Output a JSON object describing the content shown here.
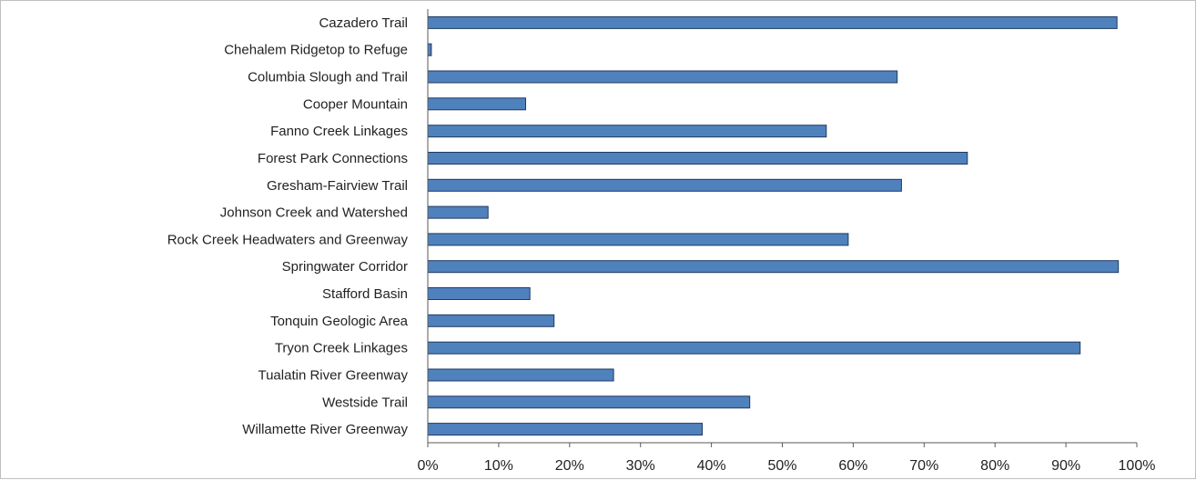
{
  "chart_data": {
    "type": "bar",
    "orientation": "horizontal",
    "title": "",
    "xlabel": "",
    "ylabel": "",
    "categories": [
      "Cazadero Trail",
      "Chehalem Ridgetop to Refuge",
      "Columbia Slough and Trail",
      "Cooper Mountain",
      "Fanno Creek Linkages",
      "Forest Park Connections",
      "Gresham-Fairview Trail",
      "Johnson Creek and Watershed",
      "Rock Creek Headwaters and Greenway",
      "Springwater Corridor",
      "Stafford Basin",
      "Tonquin Geologic Area",
      "Tryon Creek Linkages",
      "Tualatin River Greenway",
      "Westside Trail",
      "Willamette River Greenway"
    ],
    "values": [
      97.2,
      0.5,
      66.2,
      13.8,
      56.2,
      76.1,
      66.8,
      8.5,
      59.3,
      97.4,
      14.4,
      17.8,
      92.0,
      26.2,
      45.4,
      38.7
    ],
    "xlim": [
      0,
      100
    ],
    "xticks": [
      "0%",
      "10%",
      "20%",
      "30%",
      "40%",
      "50%",
      "60%",
      "70%",
      "80%",
      "90%",
      "100%"
    ],
    "grid": false,
    "legend": "none",
    "colors": {
      "bar_fill": "#4f81bd",
      "bar_edge": "#1f3a60"
    }
  }
}
